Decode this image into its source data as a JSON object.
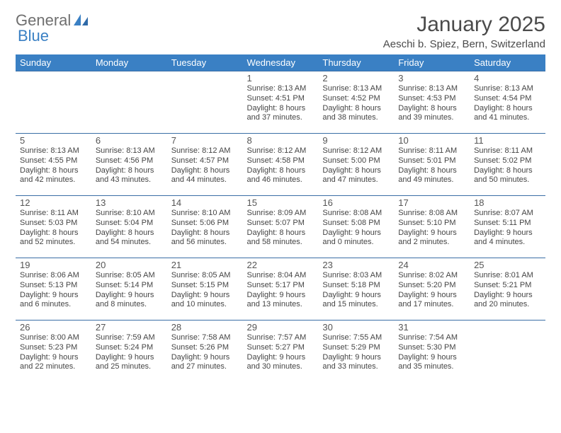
{
  "logo": {
    "general": "General",
    "blue": "Blue"
  },
  "title": "January 2025",
  "location": "Aeschi b. Spiez, Bern, Switzerland",
  "styling": {
    "header_bg": "#3a80c4",
    "header_fg": "#ffffff",
    "row_border": "#3a6ea5",
    "title_color": "#4b4b4b",
    "logo_gray": "#6f6f6f",
    "logo_blue": "#3a80c4",
    "text_color": "#454545",
    "daynum_color": "#555555",
    "page_bg": "#ffffff",
    "title_fontsize": 30,
    "header_fontsize": 13,
    "daynum_fontsize": 13,
    "info_fontsize": 11
  },
  "weekdays": [
    "Sunday",
    "Monday",
    "Tuesday",
    "Wednesday",
    "Thursday",
    "Friday",
    "Saturday"
  ],
  "weeks": [
    [
      null,
      null,
      null,
      {
        "n": "1",
        "sr": "8:13 AM",
        "ss": "4:51 PM",
        "dl": "8 hours and 37 minutes."
      },
      {
        "n": "2",
        "sr": "8:13 AM",
        "ss": "4:52 PM",
        "dl": "8 hours and 38 minutes."
      },
      {
        "n": "3",
        "sr": "8:13 AM",
        "ss": "4:53 PM",
        "dl": "8 hours and 39 minutes."
      },
      {
        "n": "4",
        "sr": "8:13 AM",
        "ss": "4:54 PM",
        "dl": "8 hours and 41 minutes."
      }
    ],
    [
      {
        "n": "5",
        "sr": "8:13 AM",
        "ss": "4:55 PM",
        "dl": "8 hours and 42 minutes."
      },
      {
        "n": "6",
        "sr": "8:13 AM",
        "ss": "4:56 PM",
        "dl": "8 hours and 43 minutes."
      },
      {
        "n": "7",
        "sr": "8:12 AM",
        "ss": "4:57 PM",
        "dl": "8 hours and 44 minutes."
      },
      {
        "n": "8",
        "sr": "8:12 AM",
        "ss": "4:58 PM",
        "dl": "8 hours and 46 minutes."
      },
      {
        "n": "9",
        "sr": "8:12 AM",
        "ss": "5:00 PM",
        "dl": "8 hours and 47 minutes."
      },
      {
        "n": "10",
        "sr": "8:11 AM",
        "ss": "5:01 PM",
        "dl": "8 hours and 49 minutes."
      },
      {
        "n": "11",
        "sr": "8:11 AM",
        "ss": "5:02 PM",
        "dl": "8 hours and 50 minutes."
      }
    ],
    [
      {
        "n": "12",
        "sr": "8:11 AM",
        "ss": "5:03 PM",
        "dl": "8 hours and 52 minutes."
      },
      {
        "n": "13",
        "sr": "8:10 AM",
        "ss": "5:04 PM",
        "dl": "8 hours and 54 minutes."
      },
      {
        "n": "14",
        "sr": "8:10 AM",
        "ss": "5:06 PM",
        "dl": "8 hours and 56 minutes."
      },
      {
        "n": "15",
        "sr": "8:09 AM",
        "ss": "5:07 PM",
        "dl": "8 hours and 58 minutes."
      },
      {
        "n": "16",
        "sr": "8:08 AM",
        "ss": "5:08 PM",
        "dl": "9 hours and 0 minutes."
      },
      {
        "n": "17",
        "sr": "8:08 AM",
        "ss": "5:10 PM",
        "dl": "9 hours and 2 minutes."
      },
      {
        "n": "18",
        "sr": "8:07 AM",
        "ss": "5:11 PM",
        "dl": "9 hours and 4 minutes."
      }
    ],
    [
      {
        "n": "19",
        "sr": "8:06 AM",
        "ss": "5:13 PM",
        "dl": "9 hours and 6 minutes."
      },
      {
        "n": "20",
        "sr": "8:05 AM",
        "ss": "5:14 PM",
        "dl": "9 hours and 8 minutes."
      },
      {
        "n": "21",
        "sr": "8:05 AM",
        "ss": "5:15 PM",
        "dl": "9 hours and 10 minutes."
      },
      {
        "n": "22",
        "sr": "8:04 AM",
        "ss": "5:17 PM",
        "dl": "9 hours and 13 minutes."
      },
      {
        "n": "23",
        "sr": "8:03 AM",
        "ss": "5:18 PM",
        "dl": "9 hours and 15 minutes."
      },
      {
        "n": "24",
        "sr": "8:02 AM",
        "ss": "5:20 PM",
        "dl": "9 hours and 17 minutes."
      },
      {
        "n": "25",
        "sr": "8:01 AM",
        "ss": "5:21 PM",
        "dl": "9 hours and 20 minutes."
      }
    ],
    [
      {
        "n": "26",
        "sr": "8:00 AM",
        "ss": "5:23 PM",
        "dl": "9 hours and 22 minutes."
      },
      {
        "n": "27",
        "sr": "7:59 AM",
        "ss": "5:24 PM",
        "dl": "9 hours and 25 minutes."
      },
      {
        "n": "28",
        "sr": "7:58 AM",
        "ss": "5:26 PM",
        "dl": "9 hours and 27 minutes."
      },
      {
        "n": "29",
        "sr": "7:57 AM",
        "ss": "5:27 PM",
        "dl": "9 hours and 30 minutes."
      },
      {
        "n": "30",
        "sr": "7:55 AM",
        "ss": "5:29 PM",
        "dl": "9 hours and 33 minutes."
      },
      {
        "n": "31",
        "sr": "7:54 AM",
        "ss": "5:30 PM",
        "dl": "9 hours and 35 minutes."
      },
      null
    ]
  ],
  "labels": {
    "sunrise": "Sunrise: ",
    "sunset": "Sunset: ",
    "daylight": "Daylight: "
  }
}
